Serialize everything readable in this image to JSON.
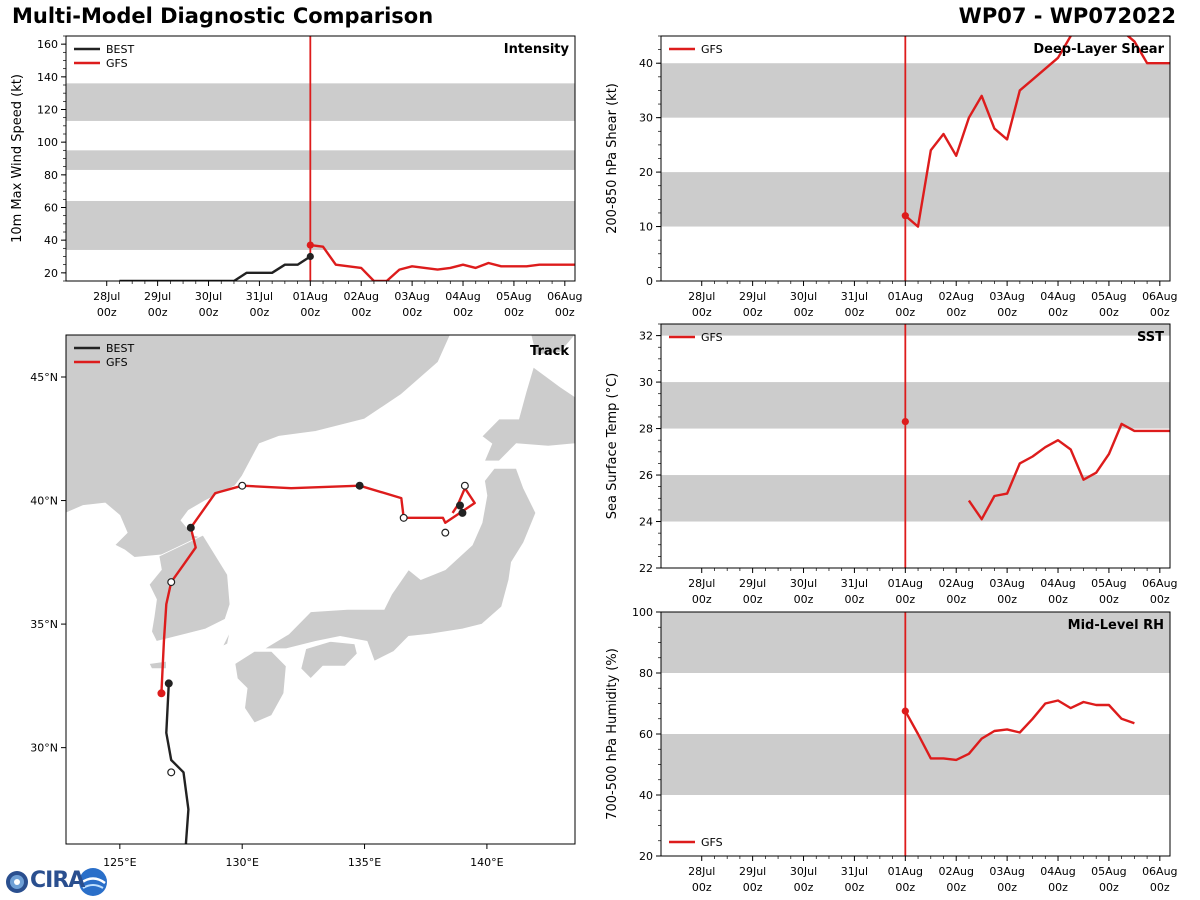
{
  "header": {
    "title": "Multi-Model Diagnostic Comparison",
    "storm": "WP07 - WP072022"
  },
  "logo": {
    "text": "CIRA"
  },
  "colors": {
    "best": "#222222",
    "gfs": "#dd1c1c",
    "band": "#cccccc",
    "land": "#cccccc"
  },
  "time_axis": {
    "categories": [
      "28Jul",
      "29Jul",
      "30Jul",
      "31Jul",
      "01Aug",
      "02Aug",
      "03Aug",
      "04Aug",
      "05Aug",
      "06Aug"
    ],
    "sublabel": "00z",
    "init_marker": "01Aug 00z"
  },
  "chart_data": [
    {
      "id": "intensity",
      "type": "line",
      "title": "Intensity",
      "ylabel": "10m Max Wind Speed (kt)",
      "ylim": [
        15,
        165
      ],
      "yticks": [
        20,
        40,
        60,
        80,
        100,
        120,
        140,
        160
      ],
      "bands": [
        [
          34,
          64
        ],
        [
          83,
          95
        ],
        [
          113,
          136
        ]
      ],
      "legend": [
        "BEST",
        "GFS"
      ],
      "series": [
        {
          "name": "BEST",
          "color": "#222222",
          "x": [
            -3.75,
            -3.5,
            -3.25,
            -3.0,
            -2.75,
            -2.5,
            -2.25,
            -2.0,
            -1.75,
            -1.5,
            -1.25,
            -1.0,
            -0.75,
            -0.5,
            -0.25,
            0.0
          ],
          "y": [
            15,
            15,
            15,
            15,
            15,
            15,
            15,
            15,
            15,
            15,
            20,
            20,
            20,
            25,
            25,
            30
          ]
        },
        {
          "name": "GFS",
          "color": "#dd1c1c",
          "x": [
            0.0,
            0.25,
            0.5,
            0.75,
            1.0,
            1.25,
            1.5,
            1.75,
            2.0,
            2.25,
            2.5,
            2.75,
            3.0,
            3.25,
            3.5,
            3.75,
            4.0,
            4.25,
            4.5,
            4.75,
            5.0,
            5.25,
            5.5
          ],
          "y": [
            37,
            36,
            25,
            24,
            23,
            15,
            15,
            22,
            24,
            23,
            22,
            23,
            25,
            23,
            26,
            24,
            24,
            24,
            25,
            25,
            25,
            25,
            25
          ]
        }
      ]
    },
    {
      "id": "shear",
      "type": "line",
      "title": "Deep-Layer Shear",
      "ylabel": "200-850 hPa Shear (kt)",
      "ylim": [
        0,
        45
      ],
      "yticks": [
        0,
        10,
        20,
        30,
        40
      ],
      "bands": [
        [
          10,
          20
        ],
        [
          30,
          40
        ]
      ],
      "legend": [
        "GFS"
      ],
      "series": [
        {
          "name": "GFS",
          "color": "#dd1c1c",
          "x": [
            0.0,
            0.25,
            0.5,
            0.75,
            1.0,
            1.25,
            1.5,
            1.75,
            2.0,
            2.25,
            2.5,
            2.75,
            3.0,
            3.25,
            3.5,
            3.75,
            4.0,
            4.25,
            4.5,
            4.75,
            5.0,
            5.25,
            5.5
          ],
          "y": [
            12,
            10,
            24,
            27,
            23,
            30,
            34,
            28,
            26,
            35,
            37,
            39,
            41,
            45,
            48,
            49,
            48,
            46,
            44,
            40,
            40,
            40,
            40
          ]
        }
      ]
    },
    {
      "id": "track",
      "type": "map",
      "title": "Track",
      "legend": [
        "BEST",
        "GFS"
      ],
      "xlim": [
        122.8,
        143.6
      ],
      "ylim": [
        26.1,
        46.7
      ],
      "xticks": [
        125,
        130,
        135,
        140
      ],
      "xtick_labels": [
        "125°E",
        "130°E",
        "135°E",
        "140°E"
      ],
      "yticks": [
        30,
        35,
        40,
        45
      ],
      "ytick_labels": [
        "30°N",
        "35°N",
        "40°N",
        "45°N"
      ],
      "series": [
        {
          "name": "BEST",
          "color": "#222222",
          "lon": [
            127.7,
            127.8,
            127.6,
            127.1,
            126.9,
            127.0
          ],
          "lat": [
            26.1,
            27.5,
            29.0,
            29.5,
            30.6,
            32.6
          ],
          "markers": [
            {
              "lon": 127.1,
              "lat": 29.0,
              "filled": false
            },
            {
              "lon": 127.0,
              "lat": 32.6,
              "filled": true
            }
          ]
        },
        {
          "name": "GFS",
          "color": "#dd1c1c",
          "lon": [
            126.7,
            126.8,
            126.9,
            127.1,
            127.6,
            128.1,
            127.9,
            128.9,
            130.0,
            132.0,
            134.8,
            136.5,
            136.6,
            138.2,
            138.3,
            139.5,
            139.1,
            138.8,
            138.6
          ],
          "lat": [
            32.2,
            34.3,
            35.8,
            36.7,
            37.4,
            38.1,
            38.9,
            40.3,
            40.6,
            40.5,
            40.6,
            40.1,
            39.3,
            39.3,
            39.1,
            39.9,
            40.5,
            39.8,
            39.5
          ],
          "markers": [
            {
              "lon": 126.7,
              "lat": 32.2,
              "filled": true,
              "color": "#dd1c1c"
            },
            {
              "lon": 127.1,
              "lat": 36.7,
              "filled": false
            },
            {
              "lon": 127.9,
              "lat": 38.9,
              "filled": true
            },
            {
              "lon": 130.0,
              "lat": 40.6,
              "filled": false
            },
            {
              "lon": 134.8,
              "lat": 40.6,
              "filled": true
            },
            {
              "lon": 136.6,
              "lat": 39.3,
              "filled": false
            },
            {
              "lon": 138.3,
              "lat": 38.7,
              "filled": false
            },
            {
              "lon": 139.1,
              "lat": 40.6,
              "filled": false
            },
            {
              "lon": 138.9,
              "lat": 39.8,
              "filled": true
            },
            {
              "lon": 139.0,
              "lat": 39.5,
              "filled": true
            }
          ]
        }
      ]
    },
    {
      "id": "sst",
      "type": "line",
      "title": "SST",
      "ylabel": "Sea Surface Temp (°C)",
      "ylim": [
        22,
        32.5
      ],
      "yticks": [
        22,
        24,
        26,
        28,
        30,
        32
      ],
      "bands": [
        [
          24,
          26
        ],
        [
          28,
          30
        ],
        [
          32,
          32.5
        ]
      ],
      "legend": [
        "GFS"
      ],
      "series": [
        {
          "name": "GFS",
          "color": "#dd1c1c",
          "x": [
            1.25,
            1.5,
            1.75,
            2.0,
            2.25,
            2.5,
            2.75,
            3.0,
            3.25,
            3.5,
            3.75,
            4.0,
            4.25,
            4.5,
            4.75,
            5.0,
            5.25,
            5.5
          ],
          "y": [
            24.9,
            24.1,
            25.1,
            25.2,
            26.5,
            26.8,
            27.2,
            27.5,
            27.1,
            25.8,
            26.1,
            26.9,
            28.2,
            27.9,
            27.9,
            27.9,
            27.9,
            27.9
          ]
        },
        {
          "name": "GFS-init",
          "color": "#dd1c1c",
          "x": [
            0.0
          ],
          "y": [
            28.3
          ]
        }
      ]
    },
    {
      "id": "rh",
      "type": "line",
      "title": "Mid-Level RH",
      "ylabel": "700-500 hPa Humidity (%)",
      "ylim": [
        20,
        100
      ],
      "yticks": [
        20,
        40,
        60,
        80,
        100
      ],
      "bands": [
        [
          40,
          60
        ],
        [
          80,
          100
        ]
      ],
      "legend": [
        "GFS"
      ],
      "series": [
        {
          "name": "GFS",
          "color": "#dd1c1c",
          "x": [
            0.0,
            0.25,
            0.5,
            0.75,
            1.0,
            1.25,
            1.5,
            1.75,
            2.0,
            2.25,
            2.5,
            2.75,
            3.0,
            3.25,
            3.5,
            3.75,
            4.0,
            4.25,
            4.5
          ],
          "y": [
            67.5,
            60,
            52,
            52,
            51.5,
            53.5,
            58.5,
            61,
            61.5,
            60.5,
            65,
            70,
            71,
            68.5,
            70.5,
            69.5,
            69.5,
            65,
            63.5
          ]
        }
      ]
    }
  ]
}
